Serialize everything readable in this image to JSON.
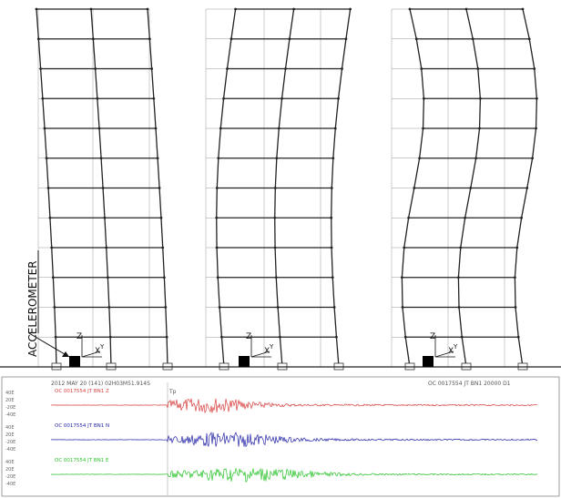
{
  "diagram": {
    "accelerometer_label": "ACCELEROMETER",
    "axis_labels": {
      "z": "Z",
      "x": "X",
      "y": "Y"
    },
    "mode_shapes": 3,
    "stories": 12,
    "colors": {
      "frame": "#222222",
      "grid": "#999999",
      "accelerometer": "#000000"
    }
  },
  "seismogram": {
    "header_left": "2012 MAY 20 (141) 02H03M51.914S",
    "header_right": "OC 0017554 JT BN1 20000 D1",
    "traces": [
      {
        "label": "OC 0017554 JT BN1 Z",
        "color": "#d94040",
        "ticks": [
          "40E",
          "20E",
          "-20E",
          "-40E"
        ]
      },
      {
        "label": "OC 0017554 JT BN1 N",
        "color": "#2424a8",
        "ticks": [
          "40E",
          "20E",
          "-20E",
          "-40E"
        ]
      },
      {
        "label": "OC 0017554 JT BN1 E",
        "color": "#2bc42b",
        "ticks": [
          "40E",
          "20E",
          "-20E",
          "-40E"
        ]
      }
    ],
    "marker": "Tp"
  }
}
